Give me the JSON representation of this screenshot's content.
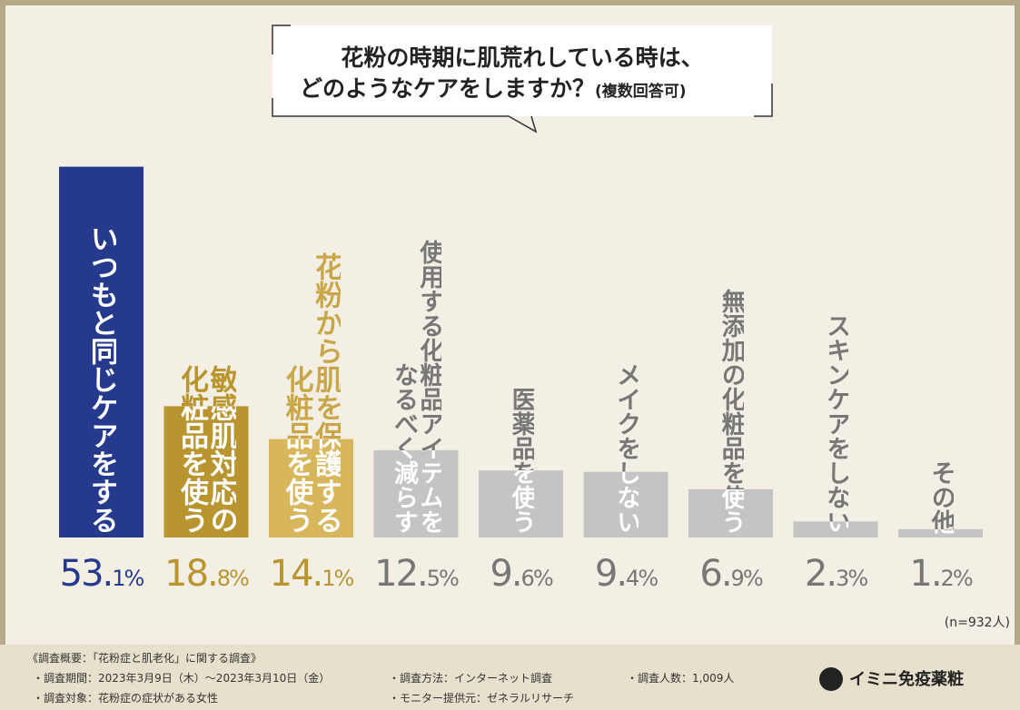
{
  "chart_data": {
    "type": "bar",
    "title_lines": [
      "花粉の時期に肌荒れしている時は、",
      "どのようなケアをしますか？"
    ],
    "subtitle": "(複数回答可)",
    "categories": [
      "いつもと同じケアをする",
      "敏感肌対応の\n化粧品を使う",
      "花粉から肌を保護する\n化粧品を使う",
      "使用する化粧品アイテムを\nなるべく減らす",
      "医薬品を使う",
      "メイクをしない",
      "無添加の化粧品を使う",
      "スキンケアをしない",
      "その他"
    ],
    "values": [
      53.1,
      18.8,
      14.1,
      12.5,
      9.6,
      9.4,
      6.9,
      2.3,
      1.2
    ],
    "value_labels": [
      "53.1%",
      "18.8%",
      "14.1%",
      "12.5%",
      "9.6%",
      "9.4%",
      "6.9%",
      "2.3%",
      "1.2%"
    ],
    "colors": [
      "#253a8c",
      "#b8952f",
      "#d8b65c",
      "#c4c4c4",
      "#c4c4c4",
      "#c4c4c4",
      "#c4c4c4",
      "#c4c4c4",
      "#c4c4c4"
    ],
    "ylim": [
      0,
      55
    ],
    "note": "(n=932人)"
  },
  "footer": {
    "heading": "《調査概要：「花粉症と肌老化」に関する調査》",
    "items": [
      "・調査期間：2023年3月9日（木）～2023年3月10日（金）",
      "・調査対象：花粉症の症状がある女性",
      "・調査方法：インターネット調査",
      "・モニター提供元：ゼネラルリサーチ",
      "・調査人数：1,009人"
    ],
    "logo": "イミニ免疫薬粧"
  }
}
